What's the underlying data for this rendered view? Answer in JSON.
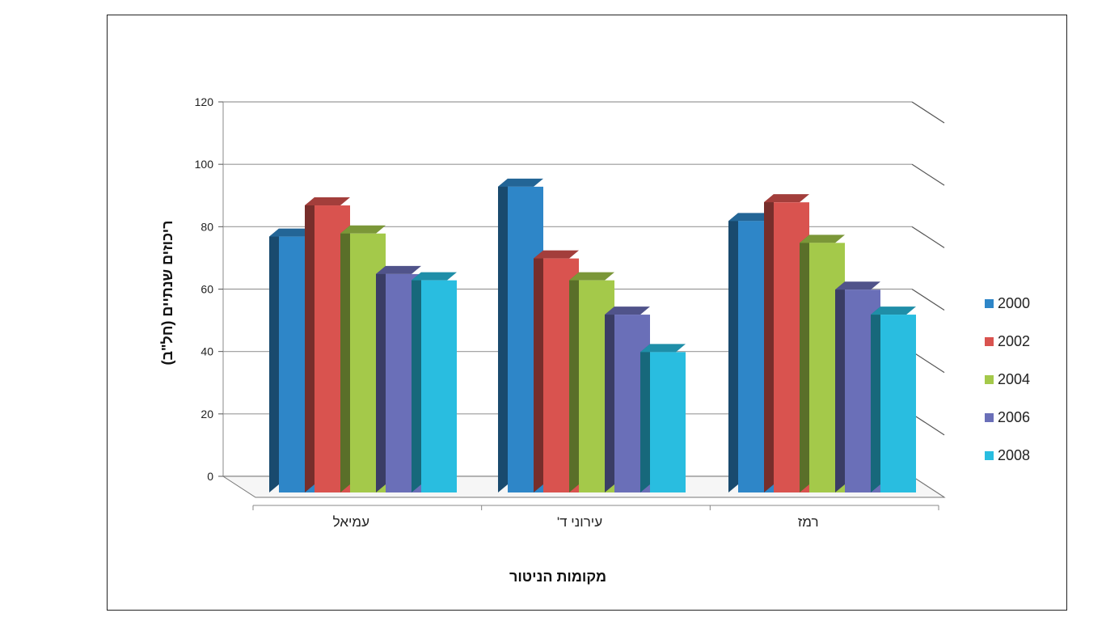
{
  "chart_data": {
    "type": "bar",
    "categories": [
      "עמיאל",
      "עירוני ד'",
      "רמז"
    ],
    "series": [
      {
        "name": "2000",
        "values": [
          82,
          98,
          87
        ],
        "color": "#2e86c8"
      },
      {
        "name": "2002",
        "values": [
          92,
          75,
          93
        ],
        "color": "#d9534f"
      },
      {
        "name": "2004",
        "values": [
          83,
          68,
          80
        ],
        "color": "#a4c94a"
      },
      {
        "name": "2006",
        "values": [
          70,
          57,
          65
        ],
        "color": "#6a6fb8"
      },
      {
        "name": "2008",
        "values": [
          68,
          45,
          57
        ],
        "color": "#29bde0"
      }
    ],
    "ylim": [
      0,
      120
    ],
    "yticks": [
      "0",
      "20",
      "40",
      "60",
      "80",
      "100",
      "120"
    ],
    "xlabel": "מקומות הניטור",
    "ylabel": "ריכוזים שנתיים (חל\"ב)",
    "grid": true,
    "legend_position": "right",
    "three_d": true
  }
}
